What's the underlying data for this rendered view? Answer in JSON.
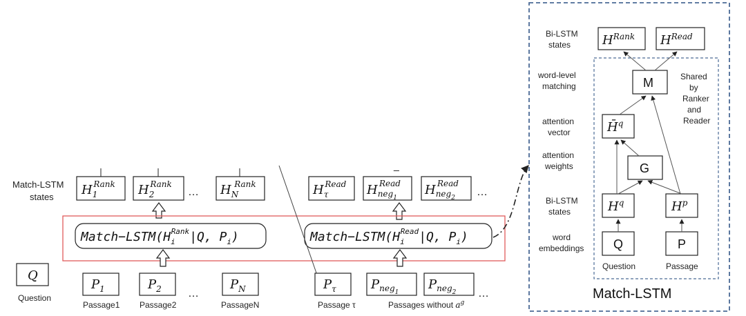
{
  "left_labels": {
    "match_lstm_states_line1": "Match-LSTM",
    "match_lstm_states_line2": "states"
  },
  "question": {
    "symbol": "Q",
    "caption": "Question"
  },
  "rank_states": {
    "base": "H",
    "sup": "Rank",
    "subs": [
      "1",
      "2",
      "N"
    ],
    "ellipsis": "…"
  },
  "read_states": {
    "base": "H",
    "sup": "Read",
    "subs": [
      "τ",
      "neg",
      "neg"
    ],
    "sub_indices": [
      "",
      "1",
      "2"
    ],
    "ellipsis": "…",
    "dash": "_"
  },
  "match_rank": {
    "prefix": "Match−LSTM(",
    "base": "H",
    "sub": "i",
    "sup": "Rank",
    "suffix_a": "|Q, P",
    "suffix_sub": "i",
    "suffix_b": ")"
  },
  "match_read": {
    "prefix": "Match−LSTM(",
    "base": "H",
    "sub": "i",
    "sup": "Read",
    "suffix_a": "|Q, P",
    "suffix_sub": "i",
    "suffix_b": ")"
  },
  "passages_rank": {
    "base": "P",
    "subs": [
      "1",
      "2",
      "N"
    ],
    "captions": [
      "Passage1",
      "Passage2",
      "PassageN"
    ],
    "ellipsis": "…"
  },
  "passages_read": {
    "base": "P",
    "subs": [
      "τ",
      "neg",
      "neg"
    ],
    "sub_indices": [
      "",
      "1",
      "2"
    ],
    "caption_tau": "Passage τ",
    "caption_neg_prefix": "Passages without ",
    "caption_neg_a": "a",
    "caption_neg_sup": "g",
    "ellipsis": "…"
  },
  "inset": {
    "title": "Match-LSTM",
    "rows": {
      "bilstm_top_1": "Bi-LSTM",
      "bilstm_top_2": "states",
      "wordlevel_1": "word-level",
      "wordlevel_2": "matching",
      "attvec_1": "attention",
      "attvec_2": "vector",
      "attw_1": "attention",
      "attw_2": "weights",
      "bilstm_1": "Bi-LSTM",
      "bilstm_2": "states",
      "wordemb_1": "word",
      "wordemb_2": "embeddings"
    },
    "h_rank": {
      "base": "H",
      "sup": "Rank"
    },
    "h_read": {
      "base": "H",
      "sup": "Read"
    },
    "m_label": "M",
    "shared_lines": [
      "Shared",
      "by",
      "Ranker",
      "and",
      "Reader"
    ],
    "hbar": {
      "base": "H̄",
      "sup": "q"
    },
    "g_label": "G",
    "hq": {
      "base": "H",
      "sup": "q"
    },
    "hp": {
      "base": "H",
      "sup": "p"
    },
    "q_label": "Q",
    "p_label": "P",
    "question_caption": "Question",
    "passage_caption": "Passage"
  },
  "colors": {
    "red_frame": "#e05a5a",
    "inset_border": "#4a6a95",
    "ink": "#222222"
  }
}
